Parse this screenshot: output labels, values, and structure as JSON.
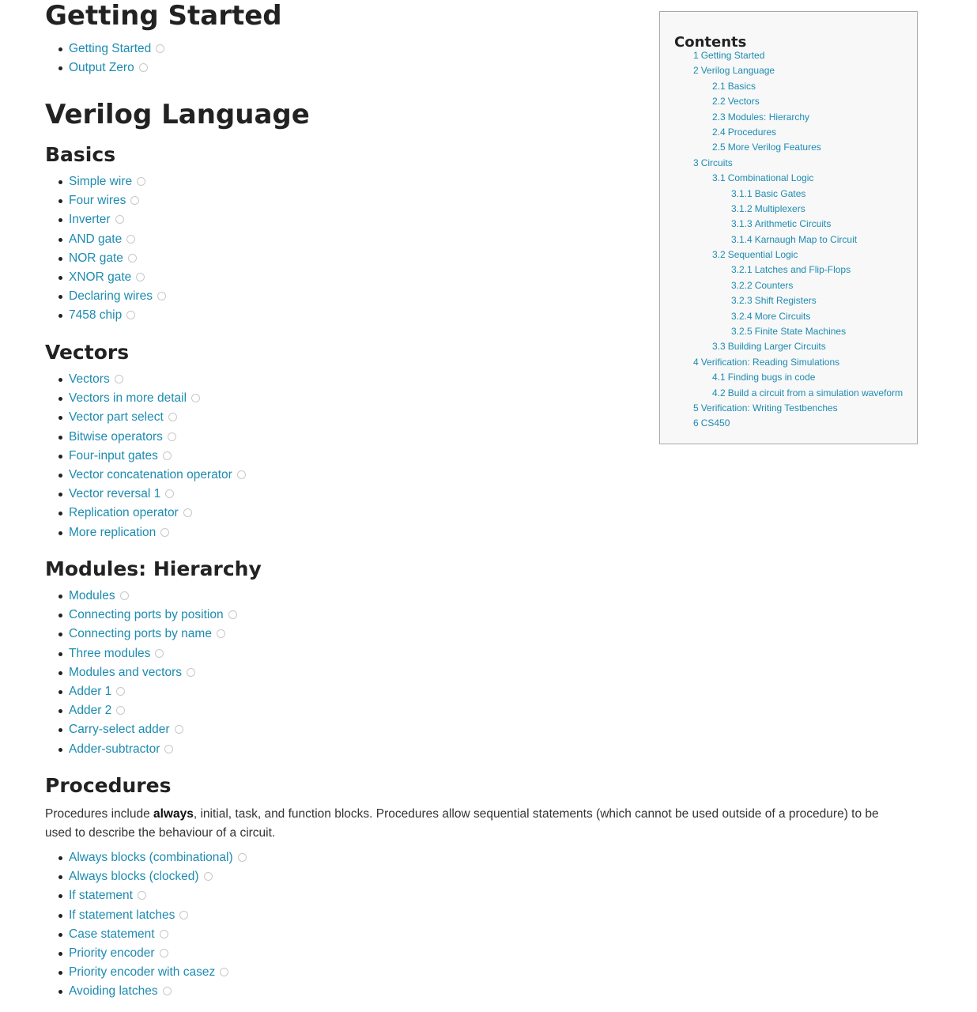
{
  "getting_started": {
    "heading": "Getting Started",
    "items": [
      "Getting Started",
      "Output Zero"
    ]
  },
  "verilog_language": {
    "heading": "Verilog Language",
    "basics": {
      "heading": "Basics",
      "items": [
        "Simple wire",
        "Four wires",
        "Inverter",
        "AND gate",
        "NOR gate",
        "XNOR gate",
        "Declaring wires",
        "7458 chip"
      ]
    },
    "vectors": {
      "heading": "Vectors",
      "items": [
        "Vectors",
        "Vectors in more detail",
        "Vector part select",
        "Bitwise operators",
        "Four-input gates",
        "Vector concatenation operator",
        "Vector reversal 1",
        "Replication operator",
        "More replication"
      ]
    },
    "modules": {
      "heading": "Modules: Hierarchy",
      "items": [
        "Modules",
        "Connecting ports by position",
        "Connecting ports by name",
        "Three modules",
        "Modules and vectors",
        "Adder 1",
        "Adder 2",
        "Carry-select adder",
        "Adder-subtractor"
      ]
    },
    "procedures": {
      "heading": "Procedures",
      "desc_before": "Procedures include ",
      "desc_bold": "always",
      "desc_after": ", initial, task, and function blocks. Procedures allow sequential statements (which cannot be used outside of a procedure) to be used to describe the behaviour of a circuit.",
      "items": [
        "Always blocks (combinational)",
        "Always blocks (clocked)",
        "If statement",
        "If statement latches",
        "Case statement",
        "Priority encoder",
        "Priority encoder with casez",
        "Avoiding latches"
      ]
    }
  },
  "toc": {
    "title": "Contents",
    "entries": [
      {
        "num": "1",
        "label": "Getting Started",
        "level": 1
      },
      {
        "num": "2",
        "label": "Verilog Language",
        "level": 1
      },
      {
        "num": "2.1",
        "label": "Basics",
        "level": 2
      },
      {
        "num": "2.2",
        "label": "Vectors",
        "level": 2
      },
      {
        "num": "2.3",
        "label": "Modules: Hierarchy",
        "level": 2
      },
      {
        "num": "2.4",
        "label": "Procedures",
        "level": 2
      },
      {
        "num": "2.5",
        "label": "More Verilog Features",
        "level": 2
      },
      {
        "num": "3",
        "label": "Circuits",
        "level": 1
      },
      {
        "num": "3.1",
        "label": "Combinational Logic",
        "level": 2
      },
      {
        "num": "3.1.1",
        "label": "Basic Gates",
        "level": 3
      },
      {
        "num": "3.1.2",
        "label": "Multiplexers",
        "level": 3
      },
      {
        "num": "3.1.3",
        "label": "Arithmetic Circuits",
        "level": 3
      },
      {
        "num": "3.1.4",
        "label": "Karnaugh Map to Circuit",
        "level": 3
      },
      {
        "num": "3.2",
        "label": "Sequential Logic",
        "level": 2
      },
      {
        "num": "3.2.1",
        "label": "Latches and Flip-Flops",
        "level": 3
      },
      {
        "num": "3.2.2",
        "label": "Counters",
        "level": 3
      },
      {
        "num": "3.2.3",
        "label": "Shift Registers",
        "level": 3
      },
      {
        "num": "3.2.4",
        "label": "More Circuits",
        "level": 3
      },
      {
        "num": "3.2.5",
        "label": "Finite State Machines",
        "level": 3
      },
      {
        "num": "3.3",
        "label": "Building Larger Circuits",
        "level": 2
      },
      {
        "num": "4",
        "label": "Verification: Reading Simulations",
        "level": 1
      },
      {
        "num": "4.1",
        "label": "Finding bugs in code",
        "level": 2
      },
      {
        "num": "4.2",
        "label": "Build a circuit from a simulation waveform",
        "level": 2
      },
      {
        "num": "5",
        "label": "Verification: Writing Testbenches",
        "level": 1
      },
      {
        "num": "6",
        "label": "CS450",
        "level": 1
      }
    ]
  },
  "colors": {
    "link": "#1e8bb0",
    "text": "#222222",
    "toc_border": "#a8a8a8",
    "toc_bg": "#f8f8f8"
  },
  "icons": {
    "status": "circle-icon"
  }
}
